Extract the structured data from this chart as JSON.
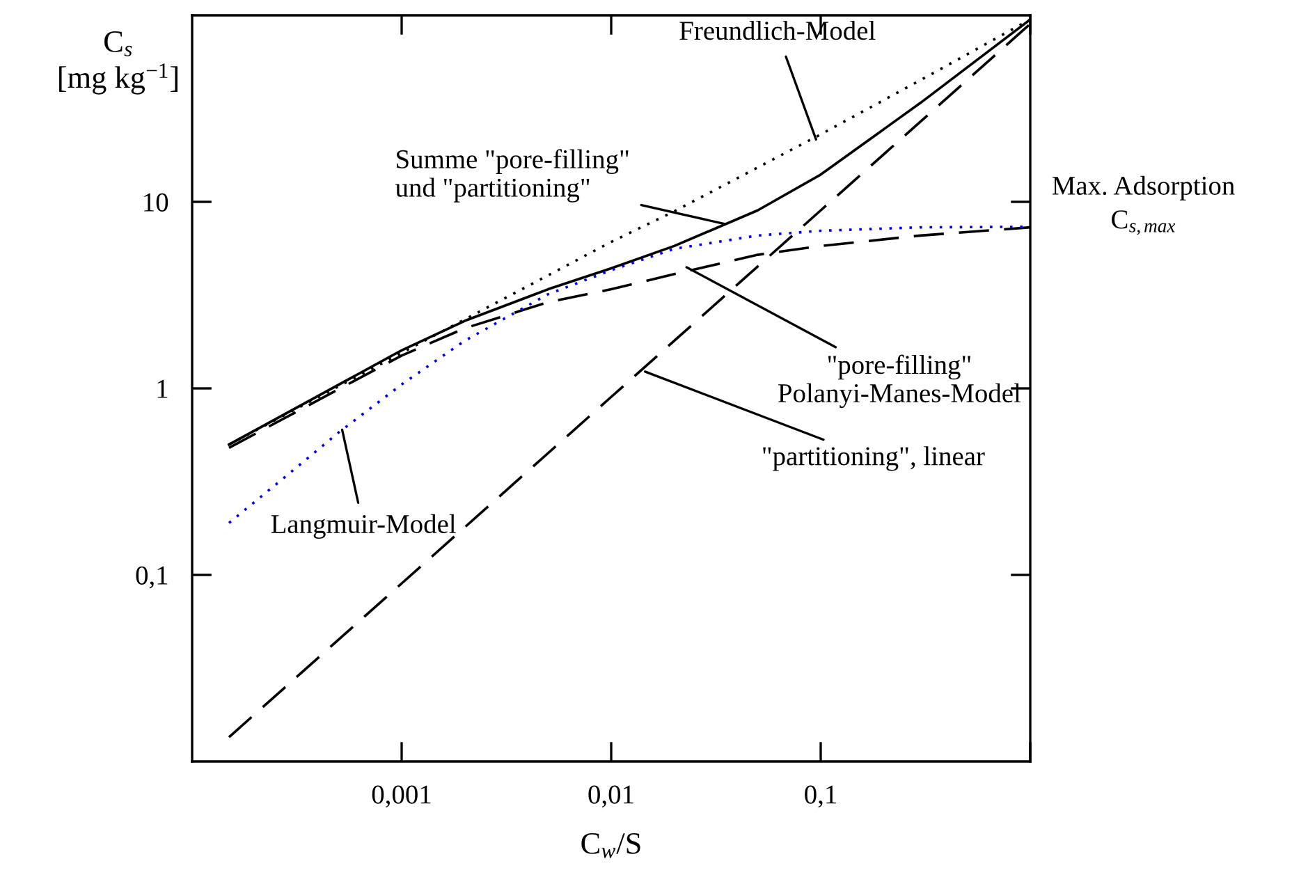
{
  "chart_data": {
    "type": "line",
    "xlabel": "C$_{w}$/S",
    "ylabel": "C$_{s}$\n[mg kg$^{−1}$]",
    "log": "xy",
    "grid": false,
    "legend": false,
    "xlim": [
      0.0001,
      1
    ],
    "ylim": [
      0.01,
      100
    ],
    "xticks": [
      {
        "value": 0.001,
        "label": "0,001"
      },
      {
        "value": 0.01,
        "label": "0,01"
      },
      {
        "value": 0.1,
        "label": "0,1"
      },
      {
        "value": 1,
        "label": null
      }
    ],
    "yticks": [
      {
        "value": 0.1,
        "label": "0,1"
      },
      {
        "value": 1,
        "label": "1"
      },
      {
        "value": 10,
        "label": "10"
      }
    ],
    "series": [
      {
        "color": "#000000",
        "line_style": "dotted",
        "x": [
          0.00015,
          0.001,
          0.01,
          0.02,
          0.1,
          0.3,
          1
        ],
        "values": [
          0.5,
          1.55,
          6.1,
          8.9,
          23,
          45,
          95
        ]
      },
      {
        "color": "#000000",
        "line_style": "solid",
        "x": [
          0.00015,
          0.001,
          0.002,
          0.005,
          0.01,
          0.02,
          0.05,
          0.1,
          0.3,
          1
        ],
        "values": [
          0.5,
          1.6,
          2.3,
          3.4,
          4.4,
          5.8,
          9,
          14,
          34,
          95
        ]
      },
      {
        "color": "#000000",
        "line_style": "dashed",
        "x": [
          0.00015,
          0.001,
          0.002,
          0.005,
          0.01,
          0.02,
          0.05,
          0.1,
          0.3,
          1
        ],
        "values": [
          0.48,
          1.5,
          2.1,
          2.9,
          3.4,
          4.1,
          5.2,
          5.8,
          6.6,
          7.3
        ]
      },
      {
        "color": "#0000ff",
        "line_style": "dotted",
        "x": [
          0.00015,
          0.0003,
          0.0005,
          0.001,
          0.002,
          0.005,
          0.01,
          0.02,
          0.05,
          0.1,
          0.3,
          1
        ],
        "values": [
          0.19,
          0.36,
          0.58,
          1.05,
          1.8,
          3.2,
          4.3,
          5.6,
          6.6,
          7.0,
          7.3,
          7.35
        ]
      },
      {
        "color": "#000000",
        "line_style": "dashed",
        "x": [
          0.00015,
          0.001,
          0.01,
          0.1,
          1
        ],
        "values": [
          0.0135,
          0.09,
          0.9,
          9,
          90
        ]
      }
    ],
    "annotations": [
      {
        "text": "Freundlich-Model",
        "x": 0.095,
        "y": 21.6
      },
      {
        "text": "Summe \"pore-filling\"\nund \"partitioning\"",
        "x": 0.035,
        "y": 7.6
      },
      {
        "text": "\"pore-filling\"\nPolanyi-Manes-Model",
        "x": 0.0229,
        "y": 4.46
      },
      {
        "text": "\"partitioning\", linear",
        "x": 0.0145,
        "y": 1.23
      },
      {
        "text": "Langmuir-Model",
        "x": 0.00052,
        "y": 0.6
      },
      "Max. Adsorption\nC$_{s,max}$"
    ]
  }
}
